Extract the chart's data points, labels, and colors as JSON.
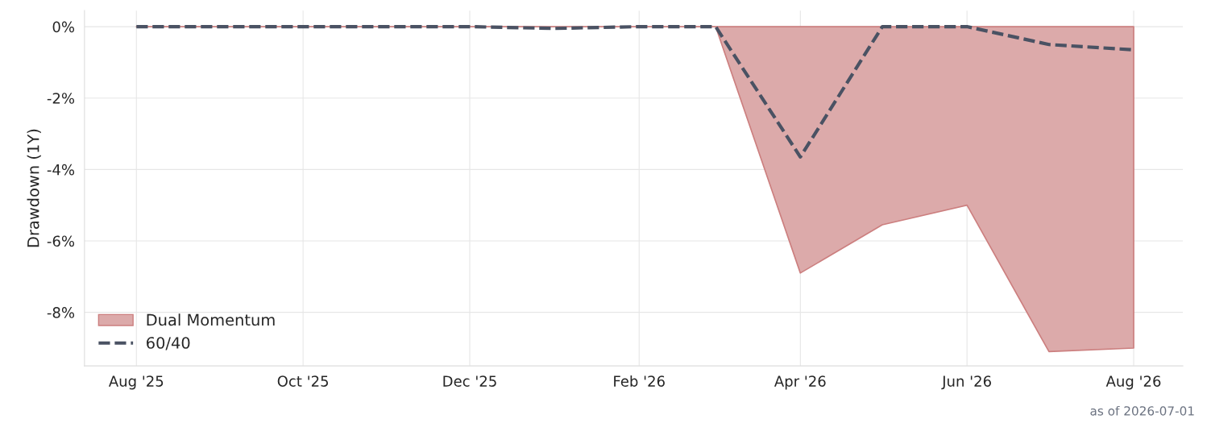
{
  "chart_data": {
    "type": "line",
    "ylabel": "Drawdown (1Y)",
    "x": [
      "2025-08-01",
      "2025-09-01",
      "2025-10-01",
      "2025-11-01",
      "2025-12-01",
      "2026-01-01",
      "2026-02-01",
      "2026-03-01",
      "2026-04-01",
      "2026-05-01",
      "2026-06-01",
      "2026-07-01",
      "2026-08-01"
    ],
    "series": [
      {
        "name": "Dual Momentum",
        "type": "area",
        "color": "#dcaaaa",
        "values": [
          0,
          0,
          0,
          0,
          0,
          0,
          0,
          0,
          -6.9,
          -5.55,
          -5.0,
          -9.1,
          -9.0
        ]
      },
      {
        "name": "60/40",
        "color": "#4a5263",
        "line_style": "dashed",
        "values": [
          0,
          0,
          0,
          0,
          0,
          -0.05,
          0,
          0,
          -3.65,
          0,
          0,
          -0.5,
          -0.65
        ]
      }
    ],
    "xlim": [
      "2025-07-13",
      "2026-08-19"
    ],
    "ylim": [
      -9.5,
      0.45
    ],
    "xticks": [
      {
        "value": "2025-08-01",
        "label": "Aug '25"
      },
      {
        "value": "2025-10-01",
        "label": "Oct '25"
      },
      {
        "value": "2025-12-01",
        "label": "Dec '25"
      },
      {
        "value": "2026-02-01",
        "label": "Feb '26"
      },
      {
        "value": "2026-04-01",
        "label": "Apr '26"
      },
      {
        "value": "2026-06-01",
        "label": "Jun '26"
      },
      {
        "value": "2026-08-01",
        "label": "Aug '26"
      }
    ],
    "yticks": [
      {
        "value": 0,
        "label": "0%"
      },
      {
        "value": -2,
        "label": "-2%"
      },
      {
        "value": -4,
        "label": "-4%"
      },
      {
        "value": -6,
        "label": "-6%"
      },
      {
        "value": -8,
        "label": "-8%"
      }
    ],
    "grid": true,
    "legend": "bottom left",
    "annotations": [
      "as of 2026-07-01"
    ]
  }
}
